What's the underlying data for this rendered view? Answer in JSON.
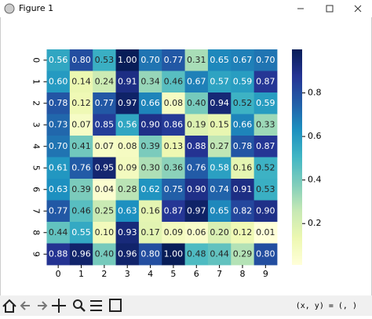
{
  "window": {
    "title": "Figure 1",
    "status": "(x, y) = (, )"
  },
  "chart_data": {
    "type": "heatmap",
    "x_categories": [
      "0",
      "1",
      "2",
      "3",
      "4",
      "5",
      "6",
      "7",
      "8",
      "9"
    ],
    "y_categories": [
      "0",
      "1",
      "2",
      "3",
      "4",
      "5",
      "6",
      "7",
      "8",
      "9"
    ],
    "values": [
      [
        0.56,
        0.8,
        0.53,
        1.0,
        0.7,
        0.77,
        0.31,
        0.65,
        0.67,
        0.7
      ],
      [
        0.6,
        0.14,
        0.24,
        0.91,
        0.34,
        0.46,
        0.67,
        0.57,
        0.59,
        0.87
      ],
      [
        0.78,
        0.12,
        0.77,
        0.97,
        0.66,
        0.08,
        0.4,
        0.94,
        0.52,
        0.59
      ],
      [
        0.73,
        0.07,
        0.85,
        0.56,
        0.9,
        0.86,
        0.19,
        0.15,
        0.66,
        0.33
      ],
      [
        0.7,
        0.41,
        0.07,
        0.08,
        0.39,
        0.13,
        0.88,
        0.27,
        0.78,
        0.87
      ],
      [
        0.61,
        0.76,
        0.95,
        0.09,
        0.3,
        0.36,
        0.76,
        0.58,
        0.16,
        0.52
      ],
      [
        0.63,
        0.39,
        0.04,
        0.28,
        0.62,
        0.75,
        0.9,
        0.74,
        0.91,
        0.53
      ],
      [
        0.77,
        0.46,
        0.25,
        0.63,
        0.16,
        0.87,
        0.97,
        0.65,
        0.82,
        0.9
      ],
      [
        0.44,
        0.55,
        0.1,
        0.93,
        0.17,
        0.09,
        0.06,
        0.2,
        0.12,
        0.01
      ],
      [
        0.88,
        0.96,
        0.4,
        0.96,
        0.8,
        1.0,
        0.48,
        0.44,
        0.29,
        0.8
      ]
    ],
    "value_labels": [
      [
        "0.56",
        "0.80",
        "0.53",
        "1.00",
        "0.70",
        "0.77",
        "0.31",
        "0.65",
        "0.67",
        "0.70"
      ],
      [
        "0.60",
        "0.14",
        "0.24",
        "0.91",
        "0.34",
        "0.46",
        "0.67",
        "0.57",
        "0.59",
        "0.87"
      ],
      [
        "0.78",
        "0.12",
        "0.77",
        "0.97",
        "0.66",
        "0.08",
        "0.40",
        "0.94",
        "0.52",
        "0.59"
      ],
      [
        "0.73",
        "0.07",
        "0.85",
        "0.56",
        "0.90",
        "0.86",
        "0.19",
        "0.15",
        "0.66",
        "0.33"
      ],
      [
        "0.70",
        "0.41",
        "0.07",
        "0.08",
        "0.39",
        "0.13",
        "0.88",
        "0.27",
        "0.78",
        "0.87"
      ],
      [
        "0.61",
        "0.76",
        "0.95",
        "0.09",
        "0.30",
        "0.36",
        "0.76",
        "0.58",
        "0.16",
        "0.52"
      ],
      [
        "0.63",
        "0.39",
        "0.04",
        "0.28",
        "0.62",
        "0.75",
        "0.90",
        "0.74",
        "0.91",
        "0.53"
      ],
      [
        "0.77",
        "0.46",
        "0.25",
        "0.63",
        "0.16",
        "0.87",
        "0.97",
        "0.65",
        "0.82",
        "0.90"
      ],
      [
        "0.44",
        "0.55",
        "0.10",
        "0.93",
        "0.17",
        "0.09",
        "0.06",
        "0.20",
        "0.12",
        "0.01"
      ],
      [
        "0.88",
        "0.96",
        "0.40",
        "0.96",
        "0.80",
        "1.00",
        "0.48",
        "0.44",
        "0.29",
        "0.80"
      ]
    ],
    "colormap": [
      "#ffffd9",
      "#edf8b1",
      "#c7e9b4",
      "#7fcdbb",
      "#41b6c4",
      "#1d91c0",
      "#225ea8",
      "#253494",
      "#081d58"
    ],
    "clim": [
      0.01,
      1.0
    ],
    "colorbar_ticks": [
      0.2,
      0.4,
      0.6,
      0.8
    ]
  }
}
